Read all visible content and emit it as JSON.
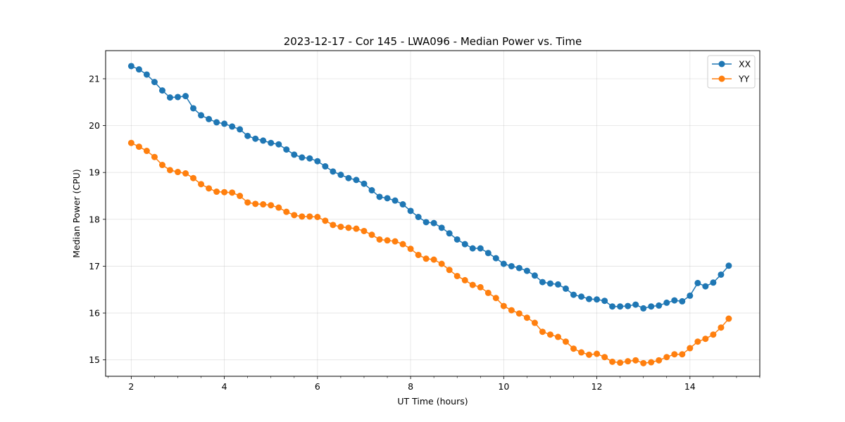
{
  "chart_data": {
    "type": "line",
    "title": "2023-12-17 - Cor 145 - LWA096 - Median Power vs. Time",
    "xlabel": "UT Time (hours)",
    "ylabel": "Median Power (CPU)",
    "xlim": [
      1.45,
      15.5
    ],
    "ylim": [
      14.65,
      21.6
    ],
    "xticks": [
      2,
      4,
      6,
      8,
      10,
      12,
      14
    ],
    "xtick_labels": [
      "2",
      "4",
      "6",
      "8",
      "10",
      "12",
      "14"
    ],
    "xminor_step": 0.5,
    "yticks": [
      15,
      16,
      17,
      18,
      19,
      20,
      21
    ],
    "ytick_labels": [
      "15",
      "16",
      "17",
      "18",
      "19",
      "20",
      "21"
    ],
    "grid": true,
    "legend_position": "top-right",
    "x": [
      2.0,
      2.167,
      2.333,
      2.5,
      2.667,
      2.833,
      3.0,
      3.167,
      3.333,
      3.5,
      3.667,
      3.833,
      4.0,
      4.167,
      4.333,
      4.5,
      4.667,
      4.833,
      5.0,
      5.167,
      5.333,
      5.5,
      5.667,
      5.833,
      6.0,
      6.167,
      6.333,
      6.5,
      6.667,
      6.833,
      7.0,
      7.167,
      7.333,
      7.5,
      7.667,
      7.833,
      8.0,
      8.167,
      8.333,
      8.5,
      8.667,
      8.833,
      9.0,
      9.167,
      9.333,
      9.5,
      9.667,
      9.833,
      10.0,
      10.167,
      10.333,
      10.5,
      10.667,
      10.833,
      11.0,
      11.167,
      11.333,
      11.5,
      11.667,
      11.833,
      12.0,
      12.167,
      12.333,
      12.5,
      12.667,
      12.833,
      13.0,
      13.167,
      13.333,
      13.5,
      13.667,
      13.833,
      14.0,
      14.167,
      14.333,
      14.5,
      14.667,
      14.833
    ],
    "series": [
      {
        "name": "XX",
        "color": "#1f77b4",
        "values": [
          21.27,
          21.2,
          21.09,
          20.93,
          20.75,
          20.6,
          20.61,
          20.63,
          20.37,
          20.22,
          20.14,
          20.07,
          20.04,
          19.98,
          19.92,
          19.78,
          19.72,
          19.68,
          19.63,
          19.6,
          19.49,
          19.38,
          19.32,
          19.3,
          19.24,
          19.13,
          19.02,
          18.95,
          18.88,
          18.84,
          18.76,
          18.62,
          18.48,
          18.45,
          18.4,
          18.32,
          18.18,
          18.05,
          17.94,
          17.92,
          17.82,
          17.7,
          17.57,
          17.47,
          17.38,
          17.38,
          17.28,
          17.17,
          17.05,
          17.0,
          16.96,
          16.9,
          16.8,
          16.66,
          16.63,
          16.61,
          16.52,
          16.39,
          16.35,
          16.3,
          16.29,
          16.26,
          16.14,
          16.14,
          16.15,
          16.18,
          16.1,
          16.14,
          16.16,
          16.22,
          16.27,
          16.25,
          16.37,
          16.64,
          16.57,
          16.65,
          16.82,
          17.01
        ]
      },
      {
        "name": "YY",
        "color": "#ff7f0e",
        "values": [
          19.63,
          19.55,
          19.46,
          19.33,
          19.16,
          19.05,
          19.01,
          18.98,
          18.88,
          18.75,
          18.66,
          18.59,
          18.58,
          18.57,
          18.5,
          18.36,
          18.33,
          18.32,
          18.3,
          18.25,
          18.16,
          18.09,
          18.06,
          18.06,
          18.05,
          17.97,
          17.88,
          17.84,
          17.82,
          17.8,
          17.75,
          17.67,
          17.57,
          17.55,
          17.53,
          17.47,
          17.37,
          17.24,
          17.16,
          17.14,
          17.05,
          16.92,
          16.79,
          16.7,
          16.6,
          16.55,
          16.43,
          16.32,
          16.15,
          16.06,
          15.99,
          15.9,
          15.79,
          15.6,
          15.54,
          15.49,
          15.39,
          15.24,
          15.16,
          15.11,
          15.13,
          15.06,
          14.96,
          14.94,
          14.97,
          14.99,
          14.93,
          14.95,
          14.99,
          15.06,
          15.12,
          15.12,
          15.25,
          15.39,
          15.45,
          15.54,
          15.69,
          15.88
        ]
      }
    ]
  }
}
